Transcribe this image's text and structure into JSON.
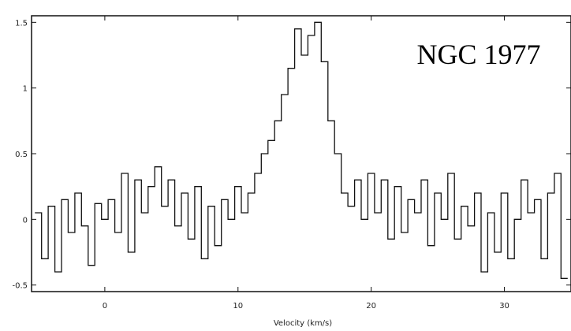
{
  "chart_data": {
    "type": "line",
    "title": "NGC 1977",
    "xlabel": "Velocity (km/s)",
    "ylabel": "",
    "xlim": [
      -5.5,
      35
    ],
    "ylim": [
      -0.55,
      1.55
    ],
    "grid": false,
    "x_ticks": [
      0,
      10,
      20,
      30
    ],
    "x_tick_labels": [
      "0",
      "10",
      "20",
      "30"
    ],
    "y_ticks": [
      -0.5,
      0,
      0.5,
      1,
      1.5
    ],
    "y_tick_labels": [
      "-0.5",
      "0",
      "0.5",
      "1",
      "1.5"
    ],
    "series": [
      {
        "values_x": [
          -5,
          -4.5,
          -4,
          -3.5,
          -3,
          -2.5,
          -2,
          -1.5,
          -1,
          -0.5,
          0,
          0.5,
          1,
          1.5,
          2,
          2.5,
          3,
          3.5,
          4,
          4.5,
          5,
          5.5,
          6,
          6.5,
          7,
          7.5,
          8,
          8.5,
          9,
          9.5,
          10,
          10.5,
          11,
          11.5,
          12,
          12.5,
          13,
          13.5,
          14,
          14.5,
          15,
          15.5,
          16,
          16.5,
          17,
          17.5,
          18,
          18.5,
          19,
          19.5,
          20,
          20.5,
          21,
          21.5,
          22,
          22.5,
          23,
          23.5,
          24,
          24.5,
          25,
          25.5,
          26,
          26.5,
          27,
          27.5,
          28,
          28.5,
          29,
          29.5,
          30,
          30.5,
          31,
          31.5,
          32,
          32.5,
          33,
          33.5,
          34,
          34.5
        ],
        "values": [
          0.05,
          -0.3,
          0.1,
          -0.4,
          0.15,
          -0.1,
          0.2,
          -0.05,
          -0.35,
          0.12,
          0.0,
          0.15,
          -0.1,
          0.35,
          -0.25,
          0.3,
          0.05,
          0.25,
          0.4,
          0.1,
          0.3,
          -0.05,
          0.2,
          -0.15,
          0.25,
          -0.3,
          0.1,
          -0.2,
          0.15,
          0.0,
          0.25,
          0.05,
          0.2,
          0.35,
          0.5,
          0.6,
          0.75,
          0.95,
          1.15,
          1.45,
          1.25,
          1.4,
          1.5,
          1.2,
          0.75,
          0.5,
          0.2,
          0.1,
          0.3,
          0.0,
          0.35,
          0.05,
          0.3,
          -0.15,
          0.25,
          -0.1,
          0.15,
          0.05,
          0.3,
          -0.2,
          0.2,
          0.0,
          0.35,
          -0.15,
          0.1,
          -0.05,
          0.2,
          -0.4,
          0.05,
          -0.25,
          0.2,
          -0.3,
          0.0,
          0.3,
          0.05,
          0.15,
          -0.3,
          0.2,
          0.35,
          -0.45
        ]
      }
    ]
  }
}
